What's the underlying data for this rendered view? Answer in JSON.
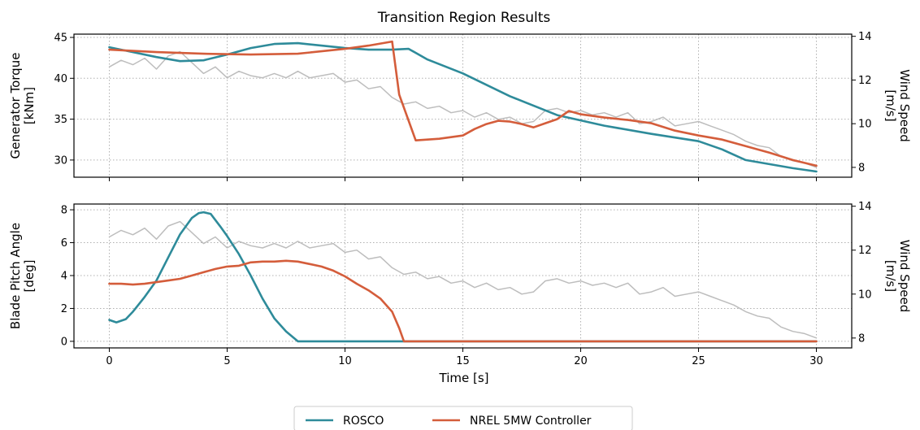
{
  "chart_data": {
    "type": "line",
    "title": "Transition Region Results",
    "xlabel": "Time [s]",
    "xlim": [
      -1.5,
      31.5
    ],
    "x_ticks": [
      0,
      5,
      10,
      15,
      20,
      25,
      30
    ],
    "legend": {
      "placement": "bottom-center",
      "entries": [
        "ROSCO",
        "NREL 5MW Controller"
      ]
    },
    "colors": {
      "ROSCO": "#2e8b9a",
      "NREL 5MW Controller": "#d45d3b",
      "Wind Speed": "#bdbdbd",
      "grid": "#b0b0b0"
    },
    "grid": true,
    "subplots": [
      {
        "ylabel": [
          "Generator Torque",
          "[kNm]"
        ],
        "ylim": [
          27.9,
          45.4
        ],
        "yticks": [
          30,
          35,
          40,
          45
        ],
        "y2label": [
          "Wind Speed",
          "[m/s]"
        ],
        "y2lim": [
          7.55,
          14.1
        ],
        "y2ticks": [
          8,
          10,
          12,
          14
        ],
        "series": [
          {
            "name": "ROSCO",
            "x": [
              0,
              1,
              2,
              3,
              4,
              5,
              6,
              7,
              8,
              9,
              10,
              11,
              12,
              12.7,
              13.5,
              15,
              17,
              19,
              21,
              23,
              25,
              26,
              27,
              28,
              29,
              30
            ],
            "y": [
              43.8,
              43.2,
              42.6,
              42.1,
              42.2,
              42.9,
              43.7,
              44.2,
              44.3,
              44.0,
              43.7,
              43.5,
              43.5,
              43.6,
              42.3,
              40.6,
              37.8,
              35.5,
              34.2,
              33.2,
              32.3,
              31.3,
              30.0,
              29.5,
              29.0,
              28.6
            ]
          },
          {
            "name": "NREL 5MW Controller",
            "x": [
              0,
              2,
              4,
              6,
              8,
              10,
              11,
              12,
              12.3,
              13,
              14,
              15,
              15.5,
              16,
              16.5,
              17,
              17.5,
              18,
              18.5,
              19,
              19.5,
              20,
              21,
              22,
              23,
              24,
              25,
              26,
              27,
              28,
              29,
              30
            ],
            "y": [
              43.5,
              43.2,
              43.0,
              42.9,
              43.0,
              43.6,
              44.0,
              44.5,
              38.0,
              32.4,
              32.6,
              33.0,
              33.8,
              34.4,
              34.8,
              34.7,
              34.4,
              34.0,
              34.5,
              35.0,
              36.0,
              35.6,
              35.2,
              34.9,
              34.5,
              33.6,
              33.0,
              32.5,
              31.7,
              30.9,
              30.0,
              29.3
            ]
          },
          {
            "name": "Wind Speed",
            "axis": "right",
            "x": [
              0,
              0.5,
              1,
              1.5,
              2,
              2.5,
              3,
              3.5,
              4,
              4.5,
              5,
              5.5,
              6,
              6.5,
              7,
              7.5,
              8,
              8.5,
              9,
              9.5,
              10,
              10.5,
              11,
              11.5,
              12,
              12.5,
              13,
              13.5,
              14,
              14.5,
              15,
              15.5,
              16,
              16.5,
              17,
              17.5,
              18,
              18.5,
              19,
              19.5,
              20,
              20.5,
              21,
              21.5,
              22,
              22.5,
              23,
              23.5,
              24,
              24.5,
              25,
              25.5,
              26,
              26.5,
              27,
              27.5,
              28,
              28.5,
              29,
              29.5,
              30
            ],
            "y": [
              12.6,
              12.9,
              12.7,
              13.0,
              12.5,
              13.1,
              13.3,
              12.8,
              12.3,
              12.6,
              12.1,
              12.4,
              12.2,
              12.1,
              12.3,
              12.1,
              12.4,
              12.1,
              12.2,
              12.3,
              11.9,
              12.0,
              11.6,
              11.7,
              11.2,
              10.9,
              11.0,
              10.7,
              10.8,
              10.5,
              10.6,
              10.3,
              10.5,
              10.2,
              10.3,
              10.0,
              10.1,
              10.6,
              10.7,
              10.5,
              10.6,
              10.4,
              10.5,
              10.3,
              10.5,
              10.0,
              10.1,
              10.3,
              9.9,
              10.0,
              10.1,
              9.9,
              9.7,
              9.5,
              9.2,
              9.0,
              8.9,
              8.5,
              8.3,
              8.2,
              8.0
            ]
          }
        ]
      },
      {
        "ylabel": [
          "Blade Pitch Angle",
          "[deg]"
        ],
        "ylim": [
          -0.4,
          8.35
        ],
        "yticks": [
          0,
          2,
          4,
          6,
          8
        ],
        "y2label": [
          "Wind Speed",
          "[m/s]"
        ],
        "y2lim": [
          7.55,
          14.1
        ],
        "y2ticks": [
          8,
          10,
          12,
          14
        ],
        "series": [
          {
            "name": "ROSCO",
            "x": [
              0,
              0.3,
              0.7,
              1,
              1.5,
              2,
              2.5,
              3,
              3.5,
              3.8,
              4,
              4.3,
              4.7,
              5,
              5.5,
              6,
              6.5,
              7,
              7.5,
              8,
              10,
              15,
              20,
              25,
              30
            ],
            "y": [
              1.3,
              1.15,
              1.35,
              1.8,
              2.7,
              3.7,
              5.1,
              6.5,
              7.5,
              7.8,
              7.85,
              7.75,
              7.0,
              6.4,
              5.3,
              4.0,
              2.6,
              1.4,
              0.6,
              0.0,
              0.0,
              0.0,
              0.0,
              0.0,
              0.0
            ]
          },
          {
            "name": "NREL 5MW Controller",
            "x": [
              0,
              0.5,
              1,
              1.5,
              2,
              2.5,
              3,
              3.5,
              4,
              4.5,
              5,
              5.5,
              6,
              6.5,
              7,
              7.5,
              8,
              8.5,
              9,
              9.5,
              10,
              10.5,
              11,
              11.5,
              12,
              12.3,
              12.5,
              15,
              20,
              25,
              30
            ],
            "y": [
              3.5,
              3.5,
              3.45,
              3.5,
              3.6,
              3.7,
              3.8,
              4.0,
              4.2,
              4.4,
              4.55,
              4.6,
              4.8,
              4.85,
              4.85,
              4.9,
              4.85,
              4.7,
              4.55,
              4.3,
              3.95,
              3.5,
              3.1,
              2.6,
              1.8,
              0.8,
              0.0,
              0.0,
              0.0,
              0.0,
              0.0
            ]
          },
          {
            "name": "Wind Speed",
            "axis": "right",
            "x": [
              0,
              0.5,
              1,
              1.5,
              2,
              2.5,
              3,
              3.5,
              4,
              4.5,
              5,
              5.5,
              6,
              6.5,
              7,
              7.5,
              8,
              8.5,
              9,
              9.5,
              10,
              10.5,
              11,
              11.5,
              12,
              12.5,
              13,
              13.5,
              14,
              14.5,
              15,
              15.5,
              16,
              16.5,
              17,
              17.5,
              18,
              18.5,
              19,
              19.5,
              20,
              20.5,
              21,
              21.5,
              22,
              22.5,
              23,
              23.5,
              24,
              24.5,
              25,
              25.5,
              26,
              26.5,
              27,
              27.5,
              28,
              28.5,
              29,
              29.5,
              30
            ],
            "y": [
              12.6,
              12.9,
              12.7,
              13.0,
              12.5,
              13.1,
              13.3,
              12.8,
              12.3,
              12.6,
              12.1,
              12.4,
              12.2,
              12.1,
              12.3,
              12.1,
              12.4,
              12.1,
              12.2,
              12.3,
              11.9,
              12.0,
              11.6,
              11.7,
              11.2,
              10.9,
              11.0,
              10.7,
              10.8,
              10.5,
              10.6,
              10.3,
              10.5,
              10.2,
              10.3,
              10.0,
              10.1,
              10.6,
              10.7,
              10.5,
              10.6,
              10.4,
              10.5,
              10.3,
              10.5,
              10.0,
              10.1,
              10.3,
              9.9,
              10.0,
              10.1,
              9.9,
              9.7,
              9.5,
              9.2,
              9.0,
              8.9,
              8.5,
              8.3,
              8.2,
              8.0
            ]
          }
        ]
      }
    ]
  }
}
